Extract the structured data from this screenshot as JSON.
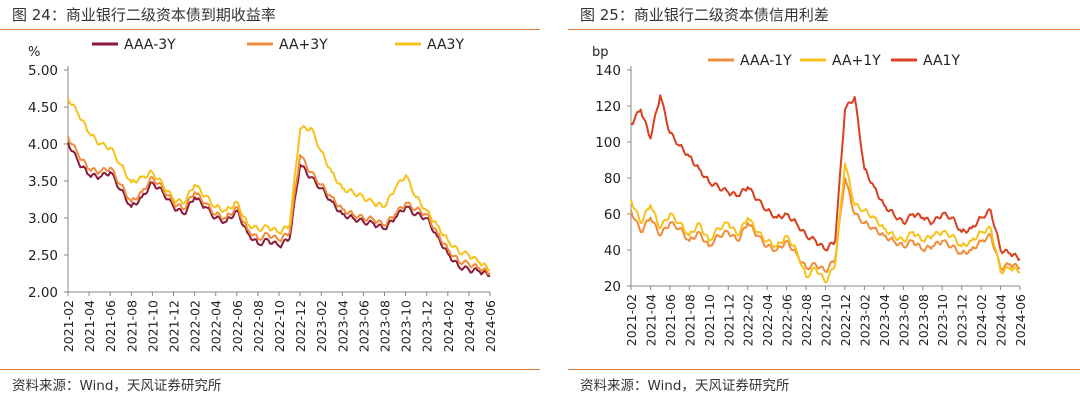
{
  "charts": [
    {
      "id": "left",
      "heading": "图 24：商业银行二级资本债到期收益率",
      "source": "资料来源：Wind，天风证券研究所",
      "chart_data": {
        "type": "line",
        "title": "商业银行二级资本债到期收益率",
        "unit": "%",
        "ylim": [
          2.0,
          5.0
        ],
        "yticks": [
          "5.00",
          "4.50",
          "4.00",
          "3.50",
          "3.00",
          "2.50",
          "2.00"
        ],
        "ytick_values": [
          5.0,
          4.5,
          4.0,
          3.5,
          3.0,
          2.5,
          2.0
        ],
        "xlim": [
          "2021-02",
          "2024-06"
        ],
        "xticks": [
          "2021-02",
          "2021-04",
          "2021-06",
          "2021-08",
          "2021-10",
          "2021-12",
          "2022-02",
          "2022-04",
          "2022-06",
          "2022-08",
          "2022-10",
          "2022-12",
          "2023-02",
          "2023-04",
          "2023-06",
          "2023-08",
          "2023-10",
          "2023-12",
          "2024-02",
          "2024-04",
          "2024-06"
        ],
        "legend_position": "top",
        "series": [
          {
            "name": "AAA-3Y",
            "color": "#8b1a3a",
            "x": [
              "2021-02",
              "2021-03",
              "2021-04",
              "2021-05",
              "2021-06",
              "2021-07",
              "2021-08",
              "2021-09",
              "2021-10",
              "2021-11",
              "2021-12",
              "2022-01",
              "2022-02",
              "2022-03",
              "2022-04",
              "2022-05",
              "2022-06",
              "2022-07",
              "2022-08",
              "2022-09",
              "2022-10",
              "2022-11",
              "2022-12",
              "2023-01",
              "2023-02",
              "2023-03",
              "2023-04",
              "2023-05",
              "2023-06",
              "2023-07",
              "2023-08",
              "2023-09",
              "2023-10",
              "2023-11",
              "2023-12",
              "2024-01",
              "2024-02",
              "2024-03",
              "2024-04",
              "2024-05",
              "2024-06"
            ],
            "values": [
              4.02,
              3.75,
              3.58,
              3.55,
              3.62,
              3.38,
              3.15,
              3.28,
              3.48,
              3.35,
              3.15,
              3.05,
              3.28,
              3.15,
              3.0,
              2.95,
              3.1,
              2.8,
              2.65,
              2.7,
              2.62,
              2.72,
              3.72,
              3.55,
              3.4,
              3.22,
              3.05,
              3.0,
              2.95,
              2.92,
              2.85,
              3.0,
              3.15,
              3.05,
              3.0,
              2.75,
              2.52,
              2.35,
              2.3,
              2.28,
              2.22
            ]
          },
          {
            "name": "AA+3Y",
            "color": "#f08c3a",
            "x": [
              "2021-02",
              "2021-03",
              "2021-04",
              "2021-05",
              "2021-06",
              "2021-07",
              "2021-08",
              "2021-09",
              "2021-10",
              "2021-11",
              "2021-12",
              "2022-01",
              "2022-02",
              "2022-03",
              "2022-04",
              "2022-05",
              "2022-06",
              "2022-07",
              "2022-08",
              "2022-09",
              "2022-10",
              "2022-11",
              "2022-12",
              "2023-01",
              "2023-02",
              "2023-03",
              "2023-04",
              "2023-05",
              "2023-06",
              "2023-07",
              "2023-08",
              "2023-09",
              "2023-10",
              "2023-11",
              "2023-12",
              "2024-01",
              "2024-02",
              "2024-03",
              "2024-04",
              "2024-05",
              "2024-06"
            ],
            "values": [
              4.1,
              3.85,
              3.66,
              3.62,
              3.68,
              3.45,
              3.22,
              3.35,
              3.55,
              3.4,
              3.2,
              3.12,
              3.35,
              3.2,
              3.05,
              3.0,
              3.15,
              2.85,
              2.72,
              2.78,
              2.7,
              2.8,
              3.85,
              3.62,
              3.45,
              3.28,
              3.12,
              3.05,
              3.0,
              2.98,
              2.9,
              3.05,
              3.2,
              3.12,
              3.05,
              2.8,
              2.58,
              2.42,
              2.38,
              2.32,
              2.25
            ]
          },
          {
            "name": "AA3Y",
            "color": "#f6c21c",
            "x": [
              "2021-02",
              "2021-03",
              "2021-04",
              "2021-05",
              "2021-06",
              "2021-07",
              "2021-08",
              "2021-09",
              "2021-10",
              "2021-11",
              "2021-12",
              "2022-01",
              "2022-02",
              "2022-03",
              "2022-04",
              "2022-05",
              "2022-06",
              "2022-07",
              "2022-08",
              "2022-09",
              "2022-10",
              "2022-11",
              "2022-12",
              "2023-01",
              "2023-02",
              "2023-03",
              "2023-04",
              "2023-05",
              "2023-06",
              "2023-07",
              "2023-08",
              "2023-09",
              "2023-10",
              "2023-11",
              "2023-12",
              "2024-01",
              "2024-02",
              "2024-03",
              "2024-04",
              "2024-05",
              "2024-06"
            ],
            "values": [
              4.62,
              4.4,
              4.15,
              4.0,
              3.95,
              3.72,
              3.48,
              3.55,
              3.62,
              3.45,
              3.25,
              3.2,
              3.45,
              3.3,
              3.15,
              3.1,
              3.22,
              2.92,
              2.85,
              2.88,
              2.8,
              2.9,
              4.2,
              4.22,
              3.9,
              3.62,
              3.4,
              3.35,
              3.28,
              3.2,
              3.15,
              3.4,
              3.58,
              3.28,
              3.1,
              2.9,
              2.7,
              2.55,
              2.5,
              2.4,
              2.3
            ]
          }
        ]
      }
    },
    {
      "id": "right",
      "heading": "图 25：商业银行二级资本债信用利差",
      "source": "资料来源：Wind，天风证券研究所",
      "chart_data": {
        "type": "line",
        "title": "商业银行二级资本债信用利差",
        "unit": "bp",
        "ylim": [
          20,
          140
        ],
        "yticks": [
          "140",
          "120",
          "100",
          "80",
          "60",
          "40",
          "20"
        ],
        "ytick_values": [
          140,
          120,
          100,
          80,
          60,
          40,
          20
        ],
        "xlim": [
          "2021-02",
          "2024-06"
        ],
        "xticks": [
          "2021-02",
          "2021-04",
          "2021-06",
          "2021-08",
          "2021-10",
          "2021-12",
          "2022-02",
          "2022-04",
          "2022-06",
          "2022-08",
          "2022-10",
          "2022-12",
          "2023-02",
          "2023-04",
          "2023-06",
          "2023-08",
          "2023-10",
          "2023-12",
          "2024-02",
          "2024-04",
          "2024-06"
        ],
        "legend_position": "top",
        "series": [
          {
            "name": "AAA-1Y",
            "color": "#f08c3a",
            "x": [
              "2021-02",
              "2021-03",
              "2021-04",
              "2021-05",
              "2021-06",
              "2021-07",
              "2021-08",
              "2021-09",
              "2021-10",
              "2021-11",
              "2021-12",
              "2022-01",
              "2022-02",
              "2022-03",
              "2022-04",
              "2022-05",
              "2022-06",
              "2022-07",
              "2022-08",
              "2022-09",
              "2022-10",
              "2022-11",
              "2022-12",
              "2023-01",
              "2023-02",
              "2023-03",
              "2023-04",
              "2023-05",
              "2023-06",
              "2023-07",
              "2023-08",
              "2023-09",
              "2023-10",
              "2023-11",
              "2023-12",
              "2024-01",
              "2024-02",
              "2024-03",
              "2024-04",
              "2024-05",
              "2024-06"
            ],
            "values": [
              62,
              50,
              58,
              48,
              55,
              52,
              45,
              50,
              42,
              48,
              50,
              45,
              55,
              48,
              42,
              40,
              45,
              38,
              30,
              32,
              28,
              35,
              80,
              60,
              55,
              52,
              48,
              45,
              42,
              45,
              40,
              42,
              45,
              42,
              38,
              40,
              45,
              48,
              30,
              32,
              30
            ]
          },
          {
            "name": "AA+1Y",
            "color": "#f6c21c",
            "x": [
              "2021-02",
              "2021-03",
              "2021-04",
              "2021-05",
              "2021-06",
              "2021-07",
              "2021-08",
              "2021-09",
              "2021-10",
              "2021-11",
              "2021-12",
              "2022-01",
              "2022-02",
              "2022-03",
              "2022-04",
              "2022-05",
              "2022-06",
              "2022-07",
              "2022-08",
              "2022-09",
              "2022-10",
              "2022-11",
              "2022-12",
              "2023-01",
              "2023-02",
              "2023-03",
              "2023-04",
              "2023-05",
              "2023-06",
              "2023-07",
              "2023-08",
              "2023-09",
              "2023-10",
              "2023-11",
              "2023-12",
              "2024-01",
              "2024-02",
              "2024-03",
              "2024-04",
              "2024-05",
              "2024-06"
            ],
            "values": [
              68,
              55,
              65,
              52,
              60,
              55,
              48,
              55,
              45,
              52,
              55,
              48,
              58,
              50,
              45,
              42,
              48,
              40,
              25,
              30,
              22,
              32,
              88,
              65,
              62,
              58,
              52,
              48,
              45,
              50,
              45,
              48,
              50,
              48,
              42,
              45,
              50,
              52,
              28,
              30,
              28
            ]
          },
          {
            "name": "AA1Y",
            "color": "#d9401f",
            "x": [
              "2021-02",
              "2021-03",
              "2021-04",
              "2021-05",
              "2021-06",
              "2021-07",
              "2021-08",
              "2021-09",
              "2021-10",
              "2021-11",
              "2021-12",
              "2022-01",
              "2022-02",
              "2022-03",
              "2022-04",
              "2022-05",
              "2022-06",
              "2022-07",
              "2022-08",
              "2022-09",
              "2022-10",
              "2022-11",
              "2022-12",
              "2023-01",
              "2023-02",
              "2023-03",
              "2023-04",
              "2023-05",
              "2023-06",
              "2023-07",
              "2023-08",
              "2023-09",
              "2023-10",
              "2023-11",
              "2023-12",
              "2024-01",
              "2024-02",
              "2024-03",
              "2024-04",
              "2024-05",
              "2024-06"
            ],
            "values": [
              110,
              118,
              102,
              126,
              105,
              98,
              92,
              85,
              78,
              75,
              72,
              70,
              75,
              68,
              62,
              58,
              60,
              55,
              48,
              45,
              40,
              45,
              118,
              125,
              85,
              75,
              65,
              60,
              55,
              60,
              58,
              55,
              60,
              58,
              50,
              52,
              58,
              62,
              40,
              38,
              35
            ]
          }
        ]
      }
    }
  ]
}
